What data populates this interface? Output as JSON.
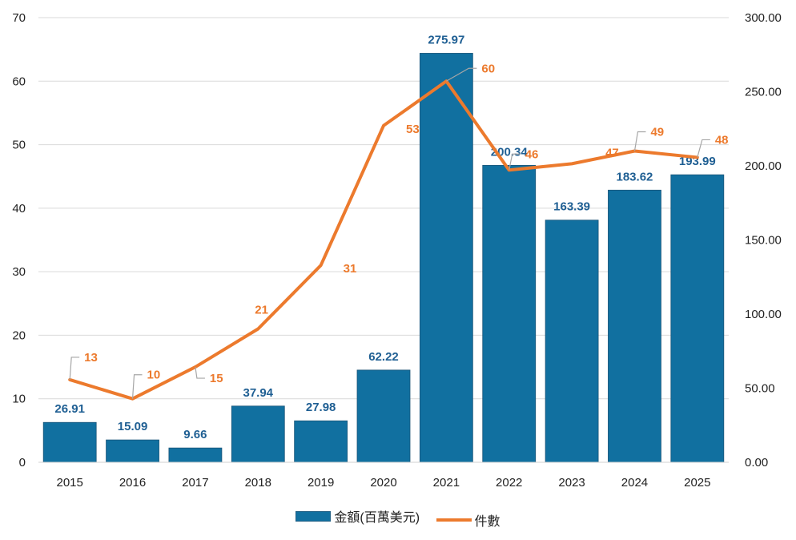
{
  "chart_data": {
    "type": "bar",
    "categories": [
      "2015",
      "2016",
      "2017",
      "2018",
      "2019",
      "2020",
      "2021",
      "2022",
      "2023",
      "2024",
      "2025"
    ],
    "series": [
      {
        "name": "金額(百萬美元",
        "type": "bar",
        "axis": "right",
        "color": "#1170a0",
        "values": [
          26.91,
          15.09,
          9.66,
          37.94,
          27.98,
          62.22,
          275.97,
          200.34,
          163.39,
          183.62,
          193.99
        ],
        "labels": [
          "26.91",
          "15.09",
          "9.66",
          "37.94",
          "27.98",
          "62.22",
          "275.97",
          "200.34",
          "163.39",
          "183.62",
          "193.99"
        ]
      },
      {
        "name": "件數",
        "type": "line",
        "axis": "left",
        "color": "#ec7a2d",
        "values": [
          13,
          10,
          15,
          21,
          31,
          53,
          60,
          46,
          47,
          49,
          48
        ],
        "labels": [
          "13",
          "10",
          "15",
          "21",
          "31",
          "53",
          "60",
          "46",
          "47",
          "49",
          "48"
        ]
      }
    ],
    "y_left": {
      "min": 0,
      "max": 70,
      "ticks": [
        "0",
        "10",
        "20",
        "30",
        "40",
        "50",
        "60",
        "70"
      ]
    },
    "y_right": {
      "min": 0,
      "max": 300,
      "ticks": [
        "0.00",
        "50.00",
        "100.00",
        "150.00",
        "200.00",
        "250.00",
        "300.00"
      ]
    },
    "grid": true,
    "legend_position": "bottom",
    "bar_label_color": "#1f5f93",
    "line_label_color": "#ec7a2d",
    "leader_color": "#a6a6a6"
  },
  "legend": {
    "bar_label": "金額(百萬美元)",
    "line_label": "件數"
  }
}
